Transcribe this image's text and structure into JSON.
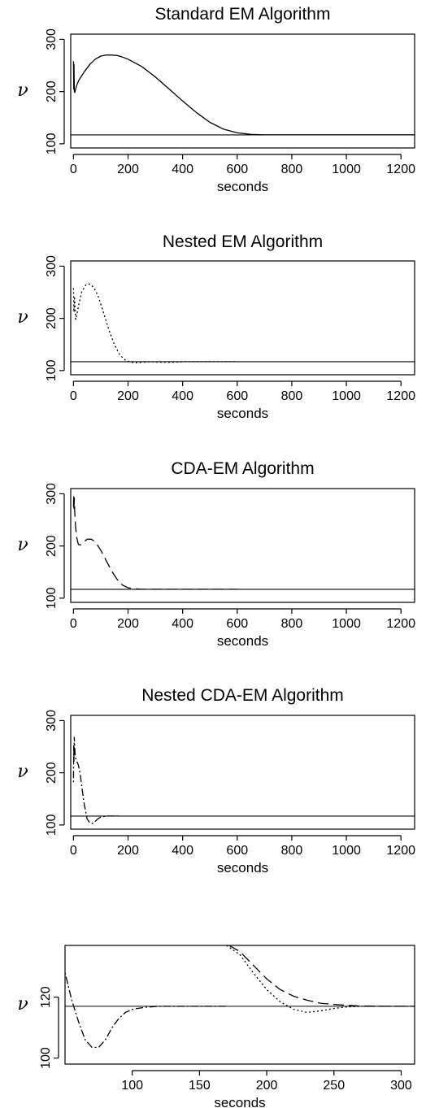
{
  "chart_data": [
    {
      "type": "line",
      "title": "Standard EM Algorithm",
      "xlabel": "seconds",
      "ylabel": "ν",
      "xlim": [
        -10,
        1250
      ],
      "ylim": [
        92,
        310
      ],
      "xticks": [
        0,
        200,
        400,
        600,
        800,
        1000,
        1200
      ],
      "yticks": [
        100,
        200,
        300
      ],
      "reference_line": 117,
      "series": [
        {
          "dash": "solid",
          "x": [
            0,
            1,
            2,
            3,
            5,
            8,
            12,
            20,
            40,
            60,
            80,
            100,
            120,
            140,
            160,
            180,
            200,
            250,
            300,
            350,
            400,
            450,
            500,
            550,
            600,
            650,
            700,
            750,
            800,
            1250
          ],
          "y": [
            258,
            205,
            252,
            200,
            198,
            205,
            212,
            222,
            238,
            252,
            262,
            268,
            270,
            270,
            269,
            266,
            262,
            248,
            228,
            205,
            182,
            160,
            141,
            128,
            121,
            118,
            117,
            117,
            117,
            117
          ]
        }
      ]
    },
    {
      "type": "line",
      "title": "Nested EM Algorithm",
      "xlabel": "seconds",
      "ylabel": "ν",
      "xlim": [
        -10,
        1250
      ],
      "ylim": [
        92,
        310
      ],
      "xticks": [
        0,
        200,
        400,
        600,
        800,
        1000,
        1200
      ],
      "yticks": [
        100,
        200,
        300
      ],
      "reference_line": 117,
      "series": [
        {
          "dash": "dotted",
          "x": [
            0,
            2,
            4,
            8,
            12,
            20,
            30,
            45,
            60,
            75,
            90,
            110,
            130,
            150,
            170,
            190,
            210,
            230,
            250,
            280,
            320,
            360,
            400,
            450,
            500,
            600
          ],
          "y": [
            258,
            212,
            242,
            198,
            206,
            228,
            250,
            264,
            266,
            259,
            243,
            211,
            178,
            150,
            130,
            120,
            116,
            115,
            116,
            117,
            116,
            116,
            117,
            117,
            117,
            117
          ]
        }
      ]
    },
    {
      "type": "line",
      "title": "CDA-EM Algorithm",
      "xlabel": "seconds",
      "ylabel": "ν",
      "xlim": [
        -10,
        1250
      ],
      "ylim": [
        92,
        310
      ],
      "xticks": [
        0,
        200,
        400,
        600,
        800,
        1000,
        1200
      ],
      "yticks": [
        100,
        200,
        300
      ],
      "reference_line": 117,
      "series": [
        {
          "dash": "long-dash",
          "x": [
            0,
            1,
            2,
            3,
            5,
            8,
            12,
            18,
            25,
            35,
            50,
            65,
            80,
            100,
            120,
            140,
            160,
            180,
            200,
            220,
            250,
            300,
            400,
            500,
            600
          ],
          "y": [
            275,
            298,
            270,
            292,
            262,
            236,
            216,
            203,
            202,
            206,
            213,
            213,
            208,
            192,
            172,
            152,
            136,
            125,
            120,
            118,
            117,
            117,
            117,
            117,
            117
          ]
        }
      ]
    },
    {
      "type": "line",
      "title": "Nested CDA-EM Algorithm",
      "xlabel": "seconds",
      "ylabel": "ν",
      "xlim": [
        -10,
        1250
      ],
      "ylim": [
        92,
        310
      ],
      "xticks": [
        0,
        200,
        400,
        600,
        800,
        1000,
        1200
      ],
      "yticks": [
        100,
        200,
        300
      ],
      "reference_line": 117,
      "series": [
        {
          "dash": "dot-dash",
          "x": [
            0,
            1,
            2,
            3,
            4,
            6,
            8,
            12,
            18,
            25,
            32,
            40,
            50,
            60,
            70,
            80,
            90,
            100,
            120,
            140,
            170
          ],
          "y": [
            182,
            252,
            222,
            268,
            255,
            234,
            228,
            222,
            215,
            196,
            168,
            138,
            112,
            104,
            103,
            107,
            112,
            115,
            117,
            117,
            117
          ]
        }
      ]
    },
    {
      "type": "line",
      "title": "",
      "xlabel": "seconds",
      "ylabel": "ν",
      "xlim": [
        50,
        310
      ],
      "ylim": [
        98,
        137
      ],
      "xticks": [
        100,
        150,
        200,
        250,
        300
      ],
      "yticks": [
        100,
        120
      ],
      "reference_line": 117,
      "series": [
        {
          "dash": "dot-dash",
          "x": [
            50,
            55,
            60,
            65,
            70,
            75,
            80,
            85,
            90,
            95,
            100,
            110,
            120,
            140,
            170
          ],
          "y": [
            128,
            119,
            112,
            106,
            103.5,
            103.5,
            106,
            110,
            113,
            115,
            116,
            116.7,
            117,
            117,
            117
          ]
        },
        {
          "dash": "dotted",
          "x": [
            170,
            180,
            190,
            200,
            210,
            220,
            230,
            240,
            250,
            260,
            270,
            290,
            310
          ],
          "y": [
            137,
            134,
            128,
            122.5,
            118.5,
            116,
            115,
            115.5,
            116.3,
            116.8,
            117,
            117,
            117
          ]
        },
        {
          "dash": "long-dash",
          "x": [
            172,
            180,
            190,
            200,
            210,
            220,
            230,
            240,
            250,
            260,
            270,
            290,
            310
          ],
          "y": [
            137,
            135,
            130.5,
            126,
            122.5,
            120.3,
            119,
            118,
            117.6,
            117.3,
            117.1,
            117,
            117
          ]
        }
      ]
    }
  ]
}
